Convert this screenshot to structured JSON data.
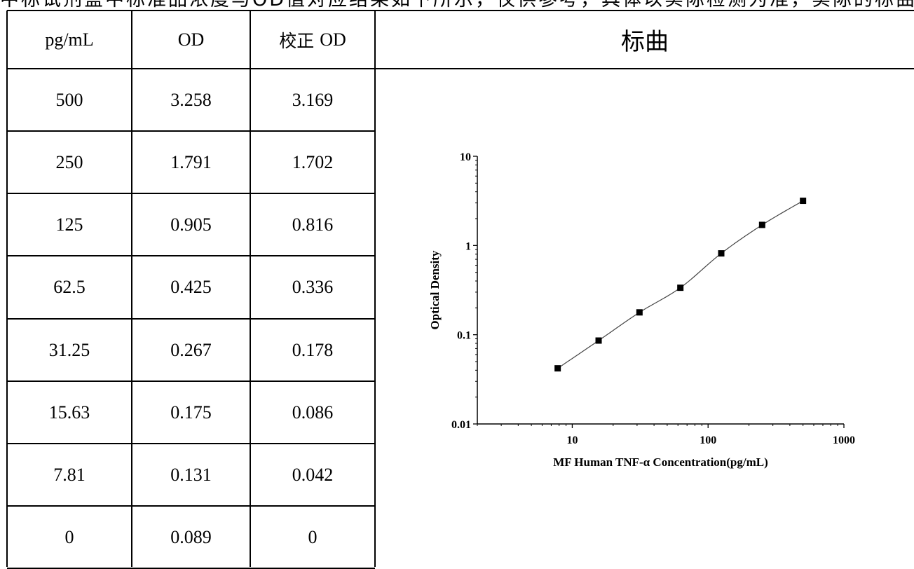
{
  "top_text": "中标试剂盒中标准品浓度与OD值对应结果如下所示，仅供参考，具体以实际检测为准，实际的标曲以实验结果为准",
  "table": {
    "headers": {
      "conc": "pg/mL",
      "od": "OD",
      "corrected_prefix": "校正",
      "corrected_suffix": "OD"
    },
    "rows": [
      {
        "conc": "500",
        "od": "3.258",
        "corrected": "3.169"
      },
      {
        "conc": "250",
        "od": "1.791",
        "corrected": "1.702"
      },
      {
        "conc": "125",
        "od": "0.905",
        "corrected": "0.816"
      },
      {
        "conc": "62.5",
        "od": "0.425",
        "corrected": "0.336"
      },
      {
        "conc": "31.25",
        "od": "0.267",
        "corrected": "0.178"
      },
      {
        "conc": "15.63",
        "od": "0.175",
        "corrected": "0.086"
      },
      {
        "conc": "7.81",
        "od": "0.131",
        "corrected": "0.042"
      },
      {
        "conc": "0",
        "od": "0.089",
        "corrected": "0"
      }
    ]
  },
  "chart_title": "标曲",
  "chart_data": {
    "type": "scatter",
    "title": "",
    "xlabel": "MF Human TNF-α Concentration(pg/mL)",
    "ylabel": "Optical Density",
    "x_scale": "log",
    "y_scale": "log",
    "xlim": [
      2,
      1000
    ],
    "ylim": [
      0.01,
      10
    ],
    "x_ticks": [
      "10",
      "100",
      "1000"
    ],
    "y_ticks": [
      "0.01",
      "0.1",
      "1",
      "10"
    ],
    "grid": false,
    "legend": "none",
    "marker": "square",
    "series": [
      {
        "x": [
          7.81,
          15.63,
          31.25,
          62.5,
          125,
          250,
          500
        ],
        "y": [
          0.042,
          0.086,
          0.178,
          0.336,
          0.816,
          1.702,
          3.169
        ]
      }
    ],
    "fit_curve": true
  }
}
